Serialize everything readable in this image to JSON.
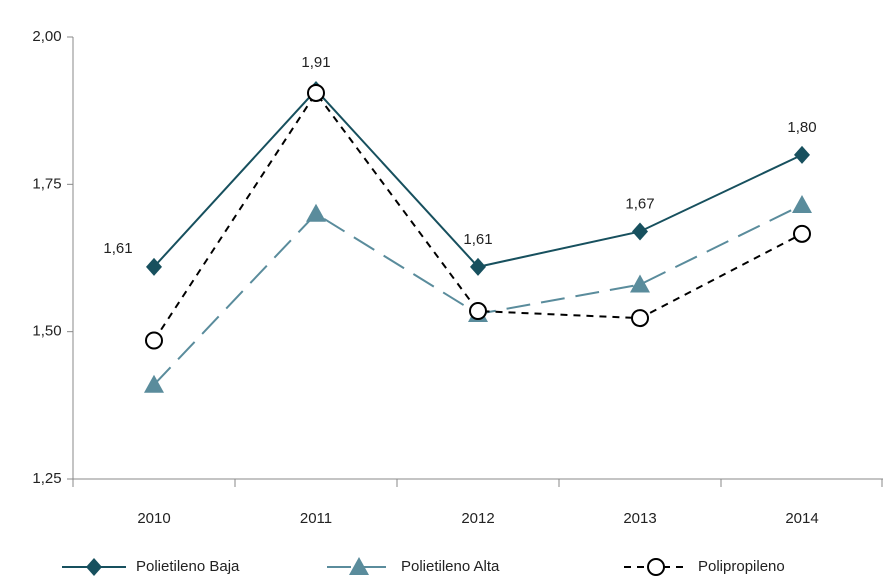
{
  "chart_data": {
    "type": "line",
    "categories": [
      "2010",
      "2011",
      "2012",
      "2013",
      "2014"
    ],
    "ylim": [
      1.25,
      2.0
    ],
    "yticks": [
      {
        "value": 1.25,
        "label": "1,25"
      },
      {
        "value": 1.5,
        "label": "1,50"
      },
      {
        "value": 1.75,
        "label": "1,75"
      },
      {
        "value": 2.0,
        "label": "2,00"
      }
    ],
    "grid": false,
    "legend": "bottom",
    "series": [
      {
        "name": "Polietileno Baja",
        "color": "#17505e",
        "marker": "diamond",
        "dash": "solid",
        "values": [
          1.61,
          1.91,
          1.61,
          1.67,
          1.8
        ],
        "value_labels": [
          "1,61",
          "1,91",
          "1,61",
          "1,67",
          "1,80"
        ]
      },
      {
        "name": "Polietileno Alta",
        "color": "#5a8c9c",
        "marker": "triangle",
        "dash": "long-dash",
        "values": [
          1.41,
          1.7,
          1.53,
          1.58,
          1.715
        ]
      },
      {
        "name": "Polipropileno",
        "color": "#000000",
        "marker": "circle",
        "dash": "dash",
        "values": [
          1.485,
          1.905,
          1.535,
          1.523,
          1.666
        ]
      }
    ]
  }
}
